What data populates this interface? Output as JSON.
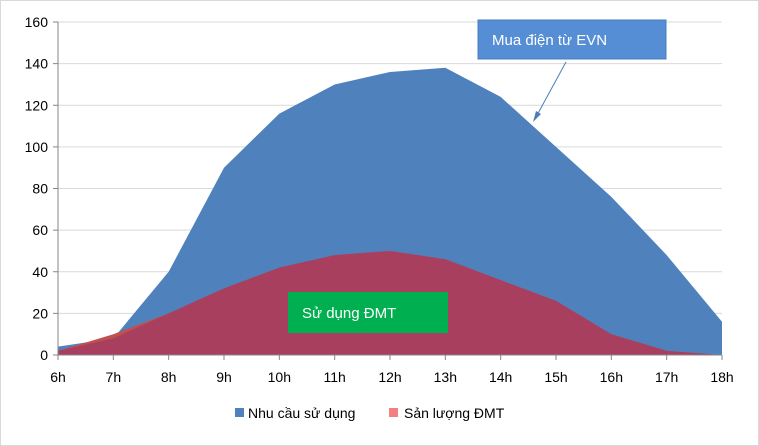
{
  "chart_data": {
    "type": "area",
    "categories": [
      "6h",
      "7h",
      "8h",
      "9h",
      "10h",
      "11h",
      "12h",
      "13h",
      "14h",
      "15h",
      "16h",
      "17h",
      "18h"
    ],
    "series": [
      {
        "name": "Nhu cầu sử dụng",
        "color": "#4f81bd",
        "values": [
          4,
          8,
          40,
          90,
          116,
          130,
          136,
          138,
          124,
          100,
          76,
          48,
          16
        ]
      },
      {
        "name": "Sản lượng ĐMT",
        "color": "#c0504d",
        "legend_color": "#f28080",
        "values": [
          2,
          10,
          20,
          32,
          42,
          48,
          50,
          46,
          36,
          26,
          10,
          2,
          0
        ]
      }
    ],
    "ylim": [
      0,
      160
    ],
    "yticks": [
      0,
      20,
      40,
      60,
      80,
      100,
      120,
      140,
      160
    ],
    "grid": true,
    "legend": "bottom",
    "annotations": [
      {
        "text": "Mua điện từ EVN",
        "box_color": "#558ed5"
      },
      {
        "text": "Sử dụng ĐMT",
        "box_color": "#00b050"
      }
    ],
    "overlap_color": "#a83f5f"
  }
}
